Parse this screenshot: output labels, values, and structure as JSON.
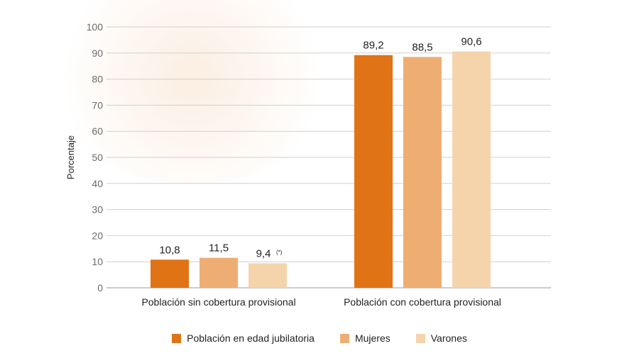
{
  "chart_data": {
    "type": "bar",
    "ylabel": "Porcentaje",
    "ylim": [
      0,
      100
    ],
    "yticks": [
      0,
      10,
      20,
      30,
      40,
      50,
      60,
      70,
      80,
      90,
      100
    ],
    "grid": true,
    "legend_position": "bottom",
    "categories": [
      "Población sin cobertura provisional",
      "Población con cobertura provisional"
    ],
    "series": [
      {
        "name": "Población en edad jubilatoria",
        "color": "#e07315",
        "values": [
          10.8,
          89.2
        ],
        "labels": [
          "10,8",
          "89,2"
        ]
      },
      {
        "name": "Mujeres",
        "color": "#eeae73",
        "values": [
          11.5,
          88.5
        ],
        "labels": [
          "11,5",
          "88,5"
        ]
      },
      {
        "name": "Varones",
        "color": "#f5d4ab",
        "values": [
          9.4,
          90.6
        ],
        "labels": [
          "9,4",
          "90,6"
        ]
      }
    ],
    "annotations": [
      {
        "series": 2,
        "category": 0,
        "text": "(*)"
      }
    ]
  }
}
